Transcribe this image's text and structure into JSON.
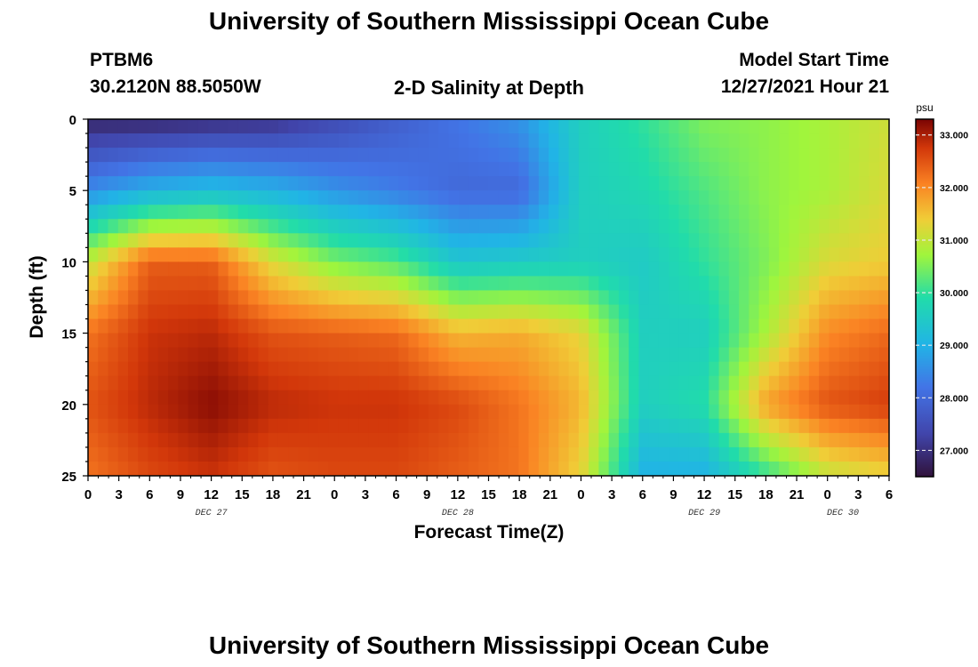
{
  "header": {
    "title": "University of Southern Mississippi Ocean Cube",
    "station": "PTBM6",
    "coords": "30.2120N  88.5050W",
    "subtitle": "2-D Salinity at Depth",
    "model_start_label": "Model Start Time",
    "model_start_value": "12/27/2021 Hour 21"
  },
  "footer": {
    "title": "University of Southern Mississippi Ocean Cube"
  },
  "chart_data": {
    "type": "heatmap",
    "title": "2-D Salinity at Depth",
    "xlabel": "Forecast Time(Z)",
    "ylabel": "Depth (ft)",
    "x_ticks": [
      "0",
      "3",
      "6",
      "9",
      "12",
      "15",
      "18",
      "21",
      "0",
      "3",
      "6",
      "9",
      "12",
      "15",
      "18",
      "21",
      "0",
      "3",
      "6",
      "9",
      "12",
      "15",
      "18",
      "21",
      "0",
      "3",
      "6"
    ],
    "date_labels": [
      "DEC 27",
      "DEC 28",
      "DEC 29",
      "DEC 30"
    ],
    "y_ticks": [
      "0",
      "5",
      "10",
      "15",
      "20",
      "25"
    ],
    "ylim": [
      0,
      25
    ],
    "y_inverted": true,
    "colorbar": {
      "unit": "psu",
      "min": 26.5,
      "max": 33.3,
      "ticks": [
        "27.000",
        "28.000",
        "29.000",
        "30.000",
        "31.000",
        "32.000",
        "33.000"
      ],
      "tick_values": [
        27,
        28,
        29,
        30,
        31,
        32,
        33
      ]
    },
    "depths_ft": [
      0,
      5,
      10,
      15,
      20,
      25
    ],
    "forecast_hours": [
      0,
      6,
      12,
      18,
      24,
      30,
      36,
      42,
      48,
      54,
      60,
      66,
      72,
      78
    ],
    "salinity_psu": [
      [
        26.8,
        26.8,
        26.9,
        27.0,
        27.4,
        27.8,
        28.2,
        28.6,
        29.6,
        30.0,
        30.5,
        30.6,
        30.8,
        31.1
      ],
      [
        28.5,
        29.0,
        29.2,
        29.0,
        28.6,
        28.3,
        28.0,
        28.0,
        29.6,
        29.8,
        30.2,
        30.6,
        30.8,
        31.2
      ],
      [
        31.0,
        32.4,
        32.4,
        31.2,
        30.5,
        30.2,
        29.4,
        29.5,
        29.6,
        29.5,
        30.0,
        30.5,
        31.2,
        31.4
      ],
      [
        32.2,
        32.8,
        32.9,
        32.5,
        32.4,
        32.3,
        31.6,
        31.7,
        31.3,
        29.6,
        29.6,
        30.8,
        32.0,
        32.3
      ],
      [
        32.5,
        32.9,
        33.2,
        32.9,
        32.8,
        32.8,
        32.6,
        32.2,
        31.6,
        29.6,
        29.9,
        31.8,
        32.5,
        32.7
      ],
      [
        32.2,
        32.6,
        32.8,
        32.5,
        32.6,
        32.6,
        32.4,
        32.2,
        31.3,
        29.0,
        29.0,
        30.0,
        31.0,
        31.3
      ]
    ]
  }
}
